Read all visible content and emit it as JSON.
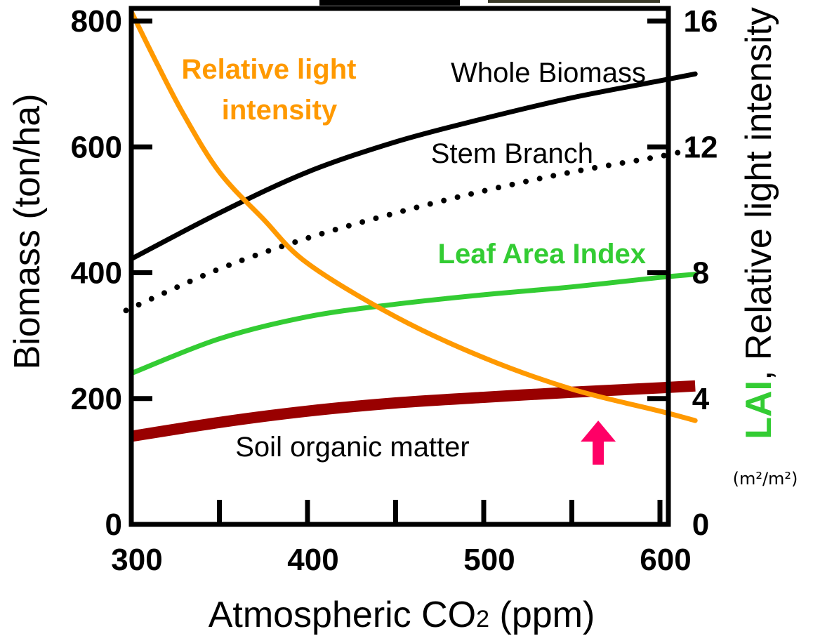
{
  "chart_data": {
    "type": "line",
    "x_axis": {
      "label_main": "Atmospheric CO",
      "label_sub": "2",
      "label_unit": " (ppm)",
      "range": [
        300,
        620
      ],
      "ticks": [
        300,
        350,
        400,
        450,
        500,
        550,
        600
      ],
      "tick_labels": [
        {
          "value": 300,
          "text": "300"
        },
        {
          "value": 400,
          "text": "400"
        },
        {
          "value": 500,
          "text": "500"
        },
        {
          "value": 600,
          "text": "600"
        }
      ]
    },
    "y_left": {
      "label": "Biomass  (ton/ha)",
      "range": [
        0,
        800
      ],
      "ticks": [
        0,
        200,
        400,
        600,
        800
      ],
      "tick_labels": [
        "0",
        "200",
        "400",
        "600",
        "800"
      ]
    },
    "y_right": {
      "label_lai": "LAI",
      "label_comma": ",",
      "label_rest": "  Relative light intensity",
      "unit": "(m²/m²)",
      "range": [
        0,
        16
      ],
      "ticks": [
        0,
        4,
        8,
        12,
        16
      ],
      "tick_labels": [
        "0",
        "4",
        "8",
        "12",
        "16"
      ]
    },
    "series": [
      {
        "name": "Whole Biomass",
        "axis": "left",
        "color": "#000000",
        "style": "solid",
        "x": [
          300,
          350,
          400,
          450,
          500,
          550,
          600,
          620
        ],
        "y": [
          422,
          495,
          560,
          608,
          645,
          678,
          705,
          716
        ]
      },
      {
        "name": "Stem Branch",
        "axis": "left",
        "color": "#000000",
        "style": "dotted",
        "x": [
          297,
          350,
          400,
          450,
          500,
          550,
          600,
          618
        ],
        "y": [
          340,
          406,
          455,
          495,
          530,
          560,
          585,
          596
        ]
      },
      {
        "name": "Leaf Area Index",
        "axis": "right",
        "color": "#33cc33",
        "style": "solid",
        "x": [
          300,
          350,
          400,
          450,
          500,
          550,
          600,
          620
        ],
        "y": [
          4.8,
          5.9,
          6.6,
          7.0,
          7.3,
          7.55,
          7.85,
          7.95
        ]
      },
      {
        "name": "Relative light intensity",
        "axis": "right",
        "color": "#ff9900",
        "style": "solid",
        "x": [
          300,
          315,
          330,
          350,
          375,
          400,
          450,
          500,
          550,
          600,
          620
        ],
        "y": [
          16.3,
          14.6,
          13.0,
          11.2,
          9.7,
          8.3,
          6.6,
          5.3,
          4.3,
          3.6,
          3.3
        ]
      },
      {
        "name": "Soil organic matter",
        "axis": "left",
        "color": "#990000",
        "style": "thick",
        "x": [
          300,
          350,
          400,
          450,
          500,
          550,
          600,
          620
        ],
        "y": [
          140,
          162,
          180,
          193,
          202,
          210,
          217,
          220
        ]
      }
    ],
    "annotations": [
      {
        "type": "arrow",
        "direction": "up",
        "color": "#ff0066",
        "x": 565,
        "y_from": 95,
        "y_to": 165
      }
    ],
    "legend_labels": {
      "whole": "Whole Biomass",
      "stem": "Stem Branch",
      "lai": "Leaf Area Index",
      "light_line1": "Relative light",
      "light_line2": "intensity",
      "soil": "Soil organic matter"
    },
    "grid": false
  }
}
